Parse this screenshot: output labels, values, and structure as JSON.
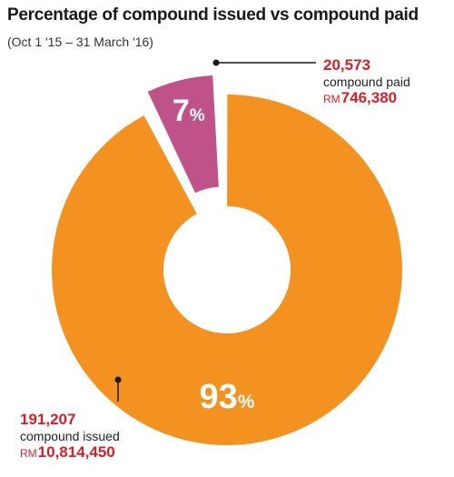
{
  "chart_data": {
    "type": "pie",
    "title": "Percentage of compound issued vs compound paid",
    "subtitle": "(Oct 1 '15 – 31 March '16)",
    "donut": true,
    "exploded_slice": "compound paid",
    "slices": [
      {
        "name": "compound paid",
        "percent": 7,
        "label_value": "7",
        "label_unit": "%",
        "count": "20,573",
        "description": "compound paid",
        "currency": "RM",
        "amount": "746,380",
        "color": "#c0528a"
      },
      {
        "name": "compound issued",
        "percent": 93,
        "label_value": "93",
        "label_unit": "%",
        "count": "191,207",
        "description": "compound issued",
        "currency": "RM",
        "amount": "10,814,450",
        "color": "#f39220"
      }
    ]
  },
  "colors": {
    "callout_red": "#d62028",
    "leader_line": "#1a1a1a",
    "slice_label": "#ffffff"
  }
}
